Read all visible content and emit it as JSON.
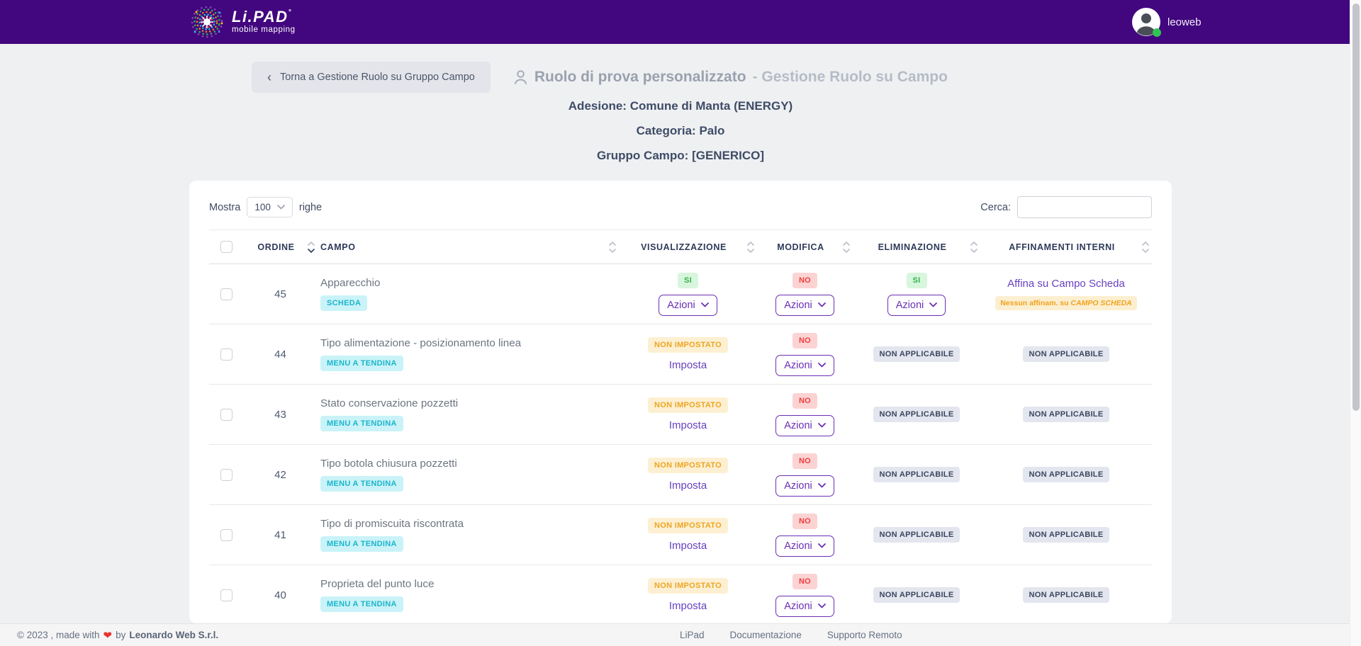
{
  "theme": {
    "header_bg": "#42067e",
    "page_bg": "#eff0f2",
    "accent_purple": "#6b2fb3",
    "link_purple": "#6741c0",
    "badge_cyan_bg": "#c9f3f8",
    "badge_cyan_text": "#1cb5cc",
    "badge_green_bg": "#d7f6dd",
    "badge_green_text": "#35b24a",
    "badge_red_bg": "#fbd3d3",
    "badge_red_text": "#f23d3d",
    "badge_yellow_bg": "#fdf0d2",
    "badge_yellow_text": "#eda524",
    "badge_gray_bg": "#e3e6ee",
    "badge_gray_text": "#3c4660",
    "online_green": "#31c553",
    "heart_red": "#e8342c"
  },
  "header": {
    "logo_title": "Li.PAD",
    "logo_mark": "°",
    "logo_subtitle": "mobile mapping",
    "user_name": "leoweb"
  },
  "page": {
    "back_chevron": "‹",
    "back_label": "Torna a Gestione Ruolo su Gruppo Campo",
    "title_main": "Ruolo di prova personalizzato",
    "title_rest": "- Gestione Ruolo su Campo",
    "info": {
      "adesione_label": "Adesione:",
      "adesione_value": "Comune di Manta (ENERGY)",
      "categoria_label": "Categoria:",
      "categoria_value": "Palo",
      "gruppo_label": "Gruppo Campo:",
      "gruppo_value": "[GENERICO]"
    }
  },
  "table": {
    "length_before": "Mostra",
    "length_value": "100",
    "length_after": "righe",
    "search_label": "Cerca:",
    "azioni_label": "Azioni",
    "columns": {
      "ordine": "ORDINE",
      "campo": "CAMPO",
      "visualizzazione": "VISUALIZZAZIONE",
      "modifica": "MODIFICA",
      "eliminazione": "ELIMINAZIONE",
      "affinamenti": "AFFINAMENTI INTERNI"
    },
    "rows": [
      {
        "ordine": "45",
        "campo": "Apparecchio",
        "campo_badge": "SCHEDA",
        "visualizzazione": {
          "badge": "SI",
          "style": "green",
          "control": "dropdown"
        },
        "modifica": {
          "badge": "NO",
          "style": "red",
          "control": "dropdown"
        },
        "eliminazione": {
          "badge": "SI",
          "style": "green",
          "control": "dropdown"
        },
        "affinamenti": {
          "link": "Affina su Campo Scheda",
          "note_prefix": "Nessun affinam. su",
          "note_em": "CAMPO SCHEDA"
        }
      },
      {
        "ordine": "44",
        "campo": "Tipo alimentazione - posizionamento linea",
        "campo_badge": "MENU A TENDINA",
        "visualizzazione": {
          "badge": "NON IMPOSTATO",
          "style": "yellow",
          "control": "link",
          "link": "Imposta"
        },
        "modifica": {
          "badge": "NO",
          "style": "red",
          "control": "dropdown"
        },
        "eliminazione": {
          "badge": "NON APPLICABILE",
          "style": "gray"
        },
        "affinamenti": {
          "badge": "NON APPLICABILE",
          "style": "gray"
        }
      },
      {
        "ordine": "43",
        "campo": "Stato conservazione pozzetti",
        "campo_badge": "MENU A TENDINA",
        "visualizzazione": {
          "badge": "NON IMPOSTATO",
          "style": "yellow",
          "control": "link",
          "link": "Imposta"
        },
        "modifica": {
          "badge": "NO",
          "style": "red",
          "control": "dropdown"
        },
        "eliminazione": {
          "badge": "NON APPLICABILE",
          "style": "gray"
        },
        "affinamenti": {
          "badge": "NON APPLICABILE",
          "style": "gray"
        }
      },
      {
        "ordine": "42",
        "campo": "Tipo botola chiusura pozzetti",
        "campo_badge": "MENU A TENDINA",
        "visualizzazione": {
          "badge": "NON IMPOSTATO",
          "style": "yellow",
          "control": "link",
          "link": "Imposta"
        },
        "modifica": {
          "badge": "NO",
          "style": "red",
          "control": "dropdown"
        },
        "eliminazione": {
          "badge": "NON APPLICABILE",
          "style": "gray"
        },
        "affinamenti": {
          "badge": "NON APPLICABILE",
          "style": "gray"
        }
      },
      {
        "ordine": "41",
        "campo": "Tipo di promiscuita riscontrata",
        "campo_badge": "MENU A TENDINA",
        "visualizzazione": {
          "badge": "NON IMPOSTATO",
          "style": "yellow",
          "control": "link",
          "link": "Imposta"
        },
        "modifica": {
          "badge": "NO",
          "style": "red",
          "control": "dropdown"
        },
        "eliminazione": {
          "badge": "NON APPLICABILE",
          "style": "gray"
        },
        "affinamenti": {
          "badge": "NON APPLICABILE",
          "style": "gray"
        }
      },
      {
        "ordine": "40",
        "campo": "Proprieta del punto luce",
        "campo_badge": "MENU A TENDINA",
        "visualizzazione": {
          "badge": "NON IMPOSTATO",
          "style": "yellow",
          "control": "link",
          "link": "Imposta"
        },
        "modifica": {
          "badge": "NO",
          "style": "red",
          "control": "dropdown"
        },
        "eliminazione": {
          "badge": "NON APPLICABILE",
          "style": "gray"
        },
        "affinamenti": {
          "badge": "NON APPLICABILE",
          "style": "gray"
        }
      }
    ]
  },
  "footer": {
    "copyright_prefix": "© 2023 , made with",
    "heart": "❤",
    "copyright_mid": "by",
    "company": "Leonardo Web S.r.l.",
    "links": [
      "LiPad",
      "Documentazione",
      "Supporto Remoto"
    ]
  }
}
